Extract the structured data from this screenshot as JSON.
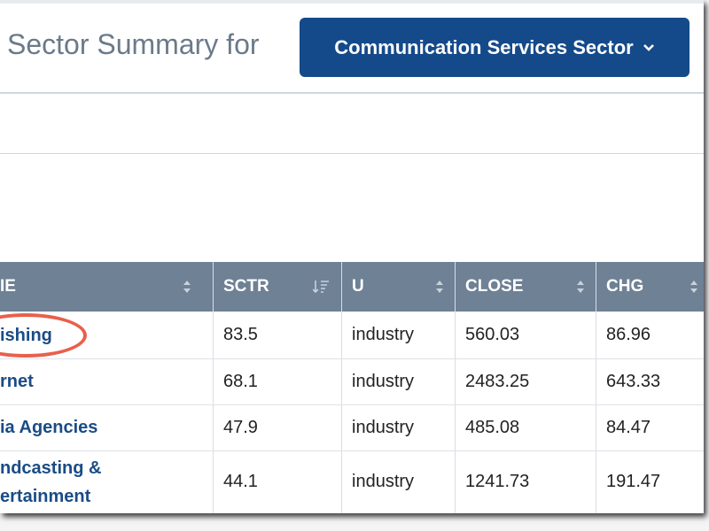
{
  "header": {
    "title": "Sector Summary for",
    "dropdown": "Communication Services Sector"
  },
  "table": {
    "columns": [
      "IE",
      "SCTR",
      "U",
      "CLOSE",
      "CHG"
    ],
    "rows": [
      [
        "ishing",
        "83.5",
        "industry",
        "560.03",
        "86.96"
      ],
      [
        "rnet",
        "68.1",
        "industry",
        "2483.25",
        "643.33"
      ],
      [
        "ia Agencies",
        "47.9",
        "industry",
        "485.08",
        "84.47"
      ],
      [
        [
          "ndcasting &",
          "ertainment"
        ],
        "44.1",
        "industry",
        "1241.73",
        "191.47"
      ]
    ]
  }
}
